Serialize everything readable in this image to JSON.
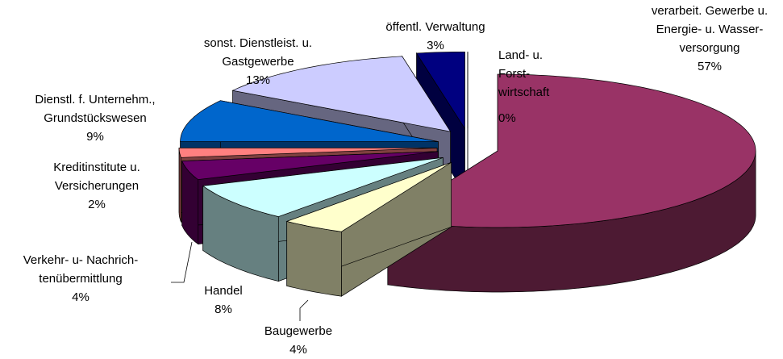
{
  "chart_data": {
    "type": "pie3d",
    "categories": [
      "Land- u.\nForst-\nwirtschaft",
      "verarbeit. Gewerbe u.\nEnergie- u. Wasser-\nversorgung",
      "Baugewerbe",
      "Handel",
      "Verkehr- u- Nachrich-\ntenübermittlung",
      "Kreditinstitute u.\nVersicherungen",
      "Dienstl. f. Unternehm.,\nGrundstückswesen",
      "sonst. Dienstleist. u.\nGastgewerbe",
      "öffentl. Verwaltung"
    ],
    "values": [
      0,
      57,
      4,
      8,
      4,
      2,
      9,
      13,
      3
    ],
    "value_labels": [
      "0%",
      "57%",
      "4%",
      "8%",
      "4%",
      "2%",
      "9%",
      "13%",
      "3%"
    ],
    "colors": [
      "#9999ff",
      "#993366",
      "#ffffcc",
      "#ccffff",
      "#660066",
      "#ff8080",
      "#0066cc",
      "#ccccff",
      "#000080"
    ]
  }
}
